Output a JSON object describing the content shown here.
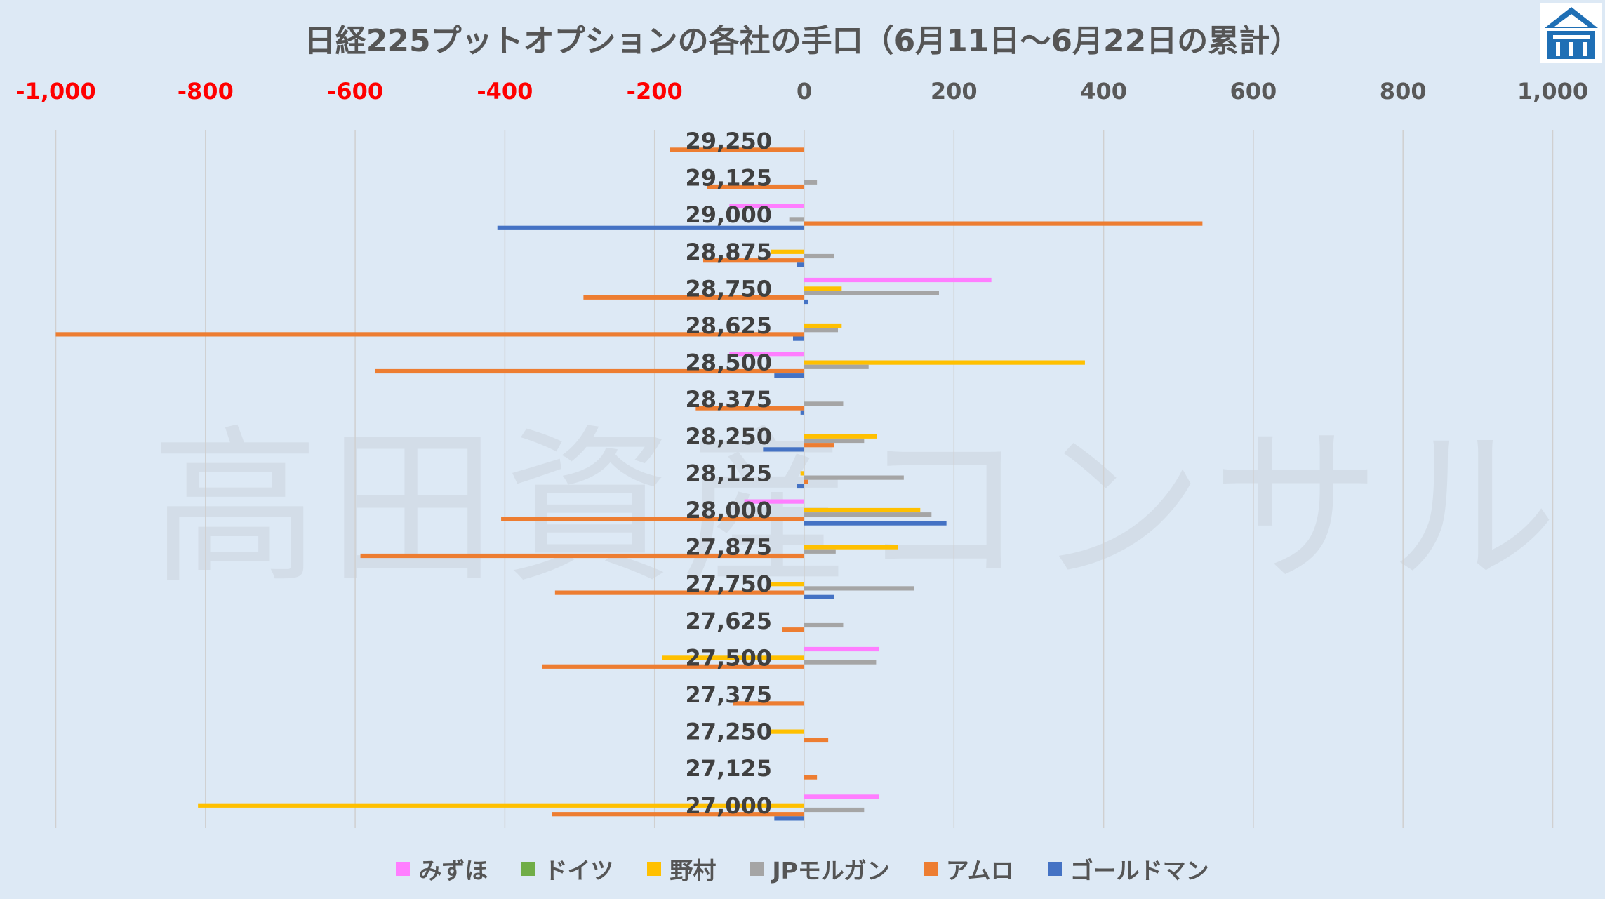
{
  "chart_data": {
    "type": "bar",
    "orientation": "horizontal",
    "title": "日経225プットオプションの各社の手口（6月11日〜6月22日の累計）",
    "watermark": "高田資産コンサル",
    "xlim": [
      -1000,
      1000
    ],
    "xticks": [
      -1000,
      -800,
      -600,
      -400,
      -200,
      0,
      200,
      400,
      600,
      800,
      1000
    ],
    "xtick_labels": [
      "-1,000",
      "-800",
      "-600",
      "-400",
      "-200",
      "0",
      "200",
      "400",
      "600",
      "800",
      "1,000"
    ],
    "negative_tick_color": "#ff0000",
    "positive_tick_color": "#595959",
    "grid": "vertical",
    "legend_position": "bottom",
    "categories": [
      "29,250",
      "29,125",
      "29,000",
      "28,875",
      "28,750",
      "28,625",
      "28,500",
      "28,375",
      "28,250",
      "28,125",
      "28,000",
      "27,875",
      "27,750",
      "27,625",
      "27,500",
      "27,375",
      "27,250",
      "27,125",
      "27,000"
    ],
    "series": [
      {
        "name": "みずほ",
        "color": "#ff7eff",
        "values": [
          0,
          0,
          -100,
          0,
          250,
          0,
          -100,
          0,
          0,
          0,
          -80,
          0,
          0,
          0,
          100,
          0,
          0,
          0,
          100
        ]
      },
      {
        "name": "ドイツ",
        "color": "#70ad47",
        "values": [
          0,
          0,
          0,
          0,
          0,
          0,
          0,
          0,
          0,
          0,
          0,
          0,
          0,
          0,
          0,
          0,
          0,
          0,
          0
        ]
      },
      {
        "name": "野村",
        "color": "#ffc000",
        "values": [
          0,
          0,
          0,
          -45,
          50,
          50,
          375,
          0,
          97,
          -5,
          155,
          125,
          -45,
          0,
          -190,
          0,
          -45,
          0,
          -810
        ]
      },
      {
        "name": "JPモルガン",
        "color": "#a5a5a5",
        "values": [
          0,
          17,
          -20,
          40,
          180,
          45,
          86,
          52,
          80,
          133,
          170,
          42,
          147,
          52,
          96,
          0,
          0,
          0,
          80
        ]
      },
      {
        "name": "アムロ",
        "color": "#ed7d31",
        "values": [
          -180,
          -130,
          532,
          -135,
          -295,
          -1000,
          -573,
          -145,
          40,
          5,
          -405,
          -593,
          -333,
          -30,
          -350,
          -95,
          32,
          17,
          -337
        ]
      },
      {
        "name": "ゴールドマン",
        "color": "#4472c4",
        "values": [
          0,
          0,
          -410,
          -10,
          5,
          -15,
          -40,
          -5,
          -55,
          -10,
          190,
          0,
          40,
          0,
          0,
          0,
          0,
          0,
          -40
        ]
      }
    ]
  },
  "logo": {
    "name": "logo-icon",
    "color": "#1f6fb5"
  }
}
